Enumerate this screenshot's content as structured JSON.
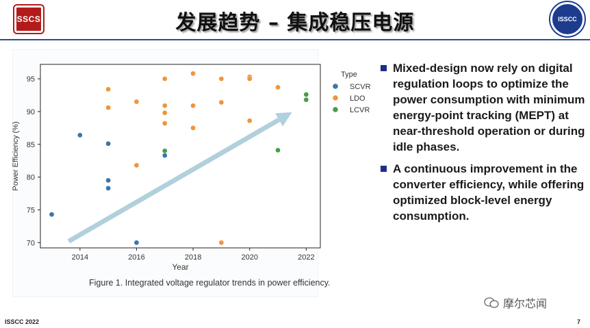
{
  "slide": {
    "title": "发展趋势 – 集成稳压电源",
    "logo_left_text": "SSCS",
    "logo_right_text": "ISSCC",
    "footer_left": "ISSCC 2022",
    "page_number": "7",
    "watermark": "摩尔芯闻"
  },
  "bullets": [
    "Mixed-design now rely on digital regulation loops to optimize the power consumption with minimum energy-point tracking (MEPT) at near-threshold operation or during idle phases.",
    "A continuous improvement in the converter efficiency, while offering optimized block-level energy consumption."
  ],
  "figure": {
    "caption": "Figure 1. Integrated voltage regulator trends in power efficiency."
  },
  "chart_data": {
    "type": "scatter",
    "title": "",
    "xlabel": "Year",
    "ylabel": "Power Efficiency (%)",
    "xlim": [
      2012.6,
      2022.5
    ],
    "ylim": [
      69.2,
      97.2
    ],
    "xticks": [
      2014,
      2016,
      2018,
      2020,
      2022
    ],
    "yticks": [
      70,
      75,
      80,
      85,
      90,
      95
    ],
    "legend_title": "Type",
    "legend_position": "outside-right",
    "trend_arrow": {
      "from": [
        2013.6,
        70.2
      ],
      "to": [
        2021.5,
        89.9
      ]
    },
    "series": [
      {
        "name": "SCVR",
        "color": "#3a76ab",
        "points": [
          [
            2013,
            74.3
          ],
          [
            2014,
            86.4
          ],
          [
            2015,
            85.1
          ],
          [
            2015,
            79.5
          ],
          [
            2015,
            78.3
          ],
          [
            2016,
            70.0
          ],
          [
            2017,
            83.3
          ]
        ]
      },
      {
        "name": "LDO",
        "color": "#f0953a",
        "points": [
          [
            2015,
            93.4
          ],
          [
            2015,
            90.6
          ],
          [
            2016,
            91.5
          ],
          [
            2016,
            81.8
          ],
          [
            2017,
            95.0
          ],
          [
            2017,
            90.9
          ],
          [
            2017,
            89.8
          ],
          [
            2017,
            88.2
          ],
          [
            2018,
            95.8
          ],
          [
            2018,
            90.9
          ],
          [
            2018,
            87.5
          ],
          [
            2019,
            95.0
          ],
          [
            2019,
            91.4
          ],
          [
            2019,
            70.0
          ],
          [
            2020,
            95.3
          ],
          [
            2020,
            95.0
          ],
          [
            2020,
            88.6
          ],
          [
            2021,
            93.7
          ]
        ]
      },
      {
        "name": "LCVR",
        "color": "#4a9c4b",
        "points": [
          [
            2017,
            84.0
          ],
          [
            2021,
            84.1
          ],
          [
            2022,
            92.6
          ],
          [
            2022,
            91.8
          ]
        ]
      }
    ]
  }
}
